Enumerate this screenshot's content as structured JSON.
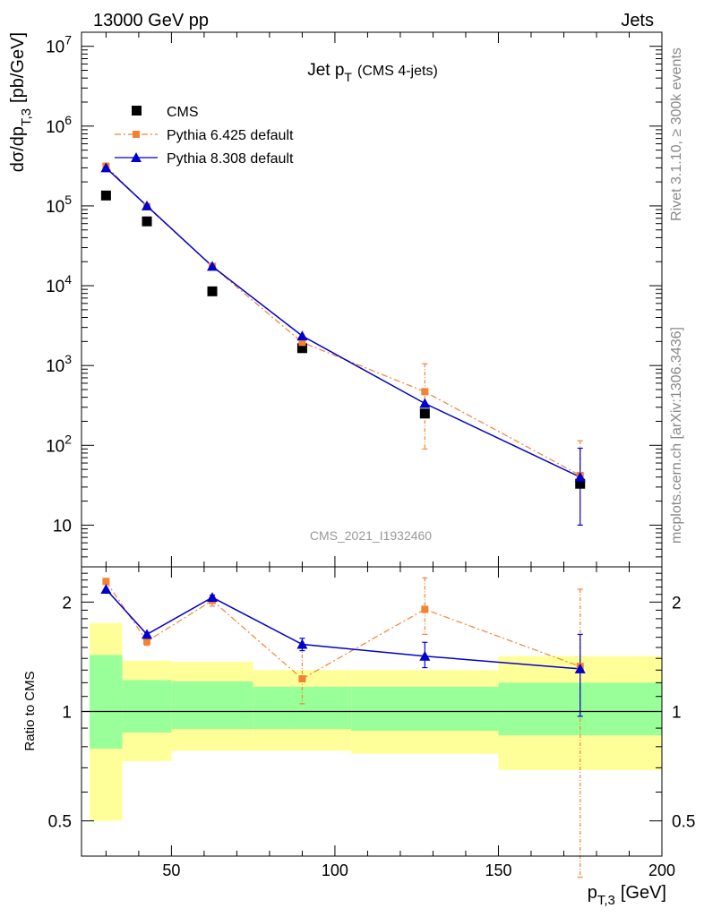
{
  "header": {
    "left": "13000 GeV pp",
    "right": "Jets"
  },
  "side_text": {
    "rivet": "Rivet 3.1.10, ≥ 300k events",
    "mcplots": "mcplots.cern.ch [arXiv:1306.3436]"
  },
  "chart_data": [
    {
      "type": "scatter",
      "title": "Jet pT (CMS 4-jets)",
      "title_main": "Jet p",
      "title_sub": "T",
      "title_note": "(CMS 4-jets)",
      "watermark": "CMS_2021_I1932460",
      "ylabel": "dσ/dp_T,3 [pb/GeV]",
      "ylabel_main": "dσ/dp",
      "ylabel_sub": "T,3",
      "ylabel_unit": "[pb/GeV]",
      "yscale": "log",
      "ylim": [
        3,
        15000000
      ],
      "xlim": [
        22.5,
        200
      ],
      "y_tick_labels": [
        "10",
        "10^2",
        "10^3",
        "10^4",
        "10^5",
        "10^6",
        "10^7"
      ],
      "legend_position": "top-left",
      "legend": [
        "CMS",
        "Pythia 6.425 default",
        "Pythia 8.308 default"
      ],
      "series": [
        {
          "name": "CMS",
          "color": "#000000",
          "marker": "square",
          "x": [
            30,
            42.5,
            62.5,
            90,
            127.5,
            175
          ],
          "y": [
            135000,
            64000,
            8500,
            1650,
            250,
            33
          ]
        },
        {
          "name": "Pythia 6.425 default",
          "color": "#f58232",
          "marker": "square",
          "line": "dash-dot",
          "x": [
            30,
            42.5,
            62.5,
            90,
            127.5,
            175
          ],
          "y": [
            315000,
            98000,
            17500,
            1950,
            470,
            42
          ],
          "y_err_low": [
            0,
            0,
            0,
            0,
            380,
            12
          ],
          "y_err_high": [
            0,
            0,
            0,
            0,
            580,
            72
          ]
        },
        {
          "name": "Pythia 8.308 default",
          "color": "#0000cc",
          "marker": "triangle",
          "line": "solid",
          "x": [
            30,
            42.5,
            62.5,
            90,
            127.5,
            175
          ],
          "y": [
            300000,
            100000,
            17500,
            2350,
            335,
            40
          ],
          "y_err_low": [
            0,
            0,
            0,
            0,
            0,
            30
          ],
          "y_err_high": [
            0,
            0,
            0,
            0,
            0,
            52
          ]
        }
      ]
    },
    {
      "type": "scatter",
      "ylabel": "Ratio to CMS",
      "xlabel": "pT,3 [GeV]",
      "xlabel_main": "p",
      "xlabel_sub": "T,3",
      "xlabel_unit": "[GeV]",
      "yscale": "log",
      "ylim": [
        0.4,
        2.5
      ],
      "xlim": [
        22.5,
        200
      ],
      "x_ticks": [
        50,
        100,
        150,
        200
      ],
      "y_ticks": [
        0.5,
        1,
        2
      ],
      "reference_line": 1,
      "bands": [
        {
          "x0": 25,
          "x1": 35,
          "stat_lo": 0.79,
          "stat_hi": 1.43,
          "tot_lo": 0.5,
          "tot_hi": 1.75
        },
        {
          "x0": 35,
          "x1": 50,
          "stat_lo": 0.875,
          "stat_hi": 1.22,
          "tot_lo": 0.73,
          "tot_hi": 1.38
        },
        {
          "x0": 50,
          "x1": 75,
          "stat_lo": 0.895,
          "stat_hi": 1.21,
          "tot_lo": 0.78,
          "tot_hi": 1.37
        },
        {
          "x0": 75,
          "x1": 105,
          "stat_lo": 0.895,
          "stat_hi": 1.17,
          "tot_lo": 0.78,
          "tot_hi": 1.3
        },
        {
          "x0": 105,
          "x1": 150,
          "stat_lo": 0.885,
          "stat_hi": 1.17,
          "tot_lo": 0.765,
          "tot_hi": 1.3
        },
        {
          "x0": 150,
          "x1": 200,
          "stat_lo": 0.86,
          "stat_hi": 1.2,
          "tot_lo": 0.69,
          "tot_hi": 1.42
        }
      ],
      "band_colors": {
        "stat": "#99ff99",
        "total": "#ffff99"
      },
      "series": [
        {
          "name": "Pythia 6.425 default",
          "color": "#f58232",
          "x": [
            30,
            42.5,
            62.5,
            90,
            127.5,
            175
          ],
          "y": [
            2.28,
            1.56,
            2.02,
            1.23,
            1.91,
            1.33
          ],
          "y_err_low": [
            0,
            0.04,
            0.07,
            0.18,
            0.28,
            0.98
          ],
          "y_err_high": [
            0,
            0.04,
            0.07,
            0.28,
            0.42,
            0.84
          ]
        },
        {
          "name": "Pythia 8.308 default",
          "color": "#0000cc",
          "x": [
            30,
            42.5,
            62.5,
            90,
            127.5,
            175
          ],
          "y": [
            2.17,
            1.63,
            2.06,
            1.53,
            1.42,
            1.31
          ],
          "y_err_low": [
            0,
            0.02,
            0.03,
            0.06,
            0.1,
            0.34
          ],
          "y_err_high": [
            0,
            0.02,
            0.03,
            0.06,
            0.13,
            0.32
          ]
        }
      ]
    }
  ]
}
